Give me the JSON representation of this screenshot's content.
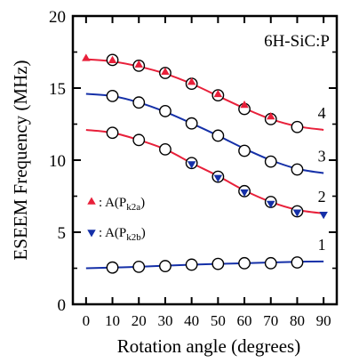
{
  "chart_data": {
    "type": "scatter",
    "annotation": "6H-SiC:P",
    "xlabel": "Rotation angle (degrees)",
    "ylabel": "ESEEM Frequency (MHz)",
    "xlim": [
      -5,
      95
    ],
    "ylim": [
      0,
      20
    ],
    "xticks": [
      0,
      10,
      20,
      30,
      40,
      50,
      60,
      70,
      80,
      90
    ],
    "yticks": [
      0,
      5,
      10,
      15,
      20
    ],
    "grid": false,
    "legend": {
      "placement": "middle-left",
      "entries": [
        {
          "marker": "triangle-up",
          "color": "#e8203a",
          "label": "A(P",
          "sub": "k2a",
          "suffix": ")"
        },
        {
          "marker": "triangle-down",
          "color": "#1530a8",
          "label": "A(P",
          "sub": "k2b",
          "suffix": ")"
        }
      ]
    },
    "curves": [
      {
        "label": "1",
        "color": "#1530a8",
        "x": [
          0,
          10,
          20,
          30,
          40,
          50,
          60,
          70,
          80,
          90
        ],
        "y": [
          2.5,
          2.55,
          2.6,
          2.68,
          2.75,
          2.8,
          2.85,
          2.9,
          2.95,
          2.97
        ]
      },
      {
        "label": "2",
        "color": "#e8203a",
        "x": [
          0,
          10,
          20,
          30,
          40,
          50,
          60,
          70,
          80,
          90
        ],
        "y": [
          12.1,
          11.9,
          11.4,
          10.75,
          9.8,
          8.9,
          7.9,
          7.1,
          6.55,
          6.3
        ]
      },
      {
        "label": "3",
        "color": "#1530a8",
        "x": [
          0,
          10,
          20,
          30,
          40,
          50,
          60,
          70,
          80,
          90
        ],
        "y": [
          14.6,
          14.45,
          14.0,
          13.35,
          12.55,
          11.7,
          10.8,
          10.0,
          9.4,
          9.1
        ]
      },
      {
        "label": "4",
        "color": "#e8203a",
        "x": [
          0,
          10,
          20,
          30,
          40,
          50,
          60,
          70,
          80,
          90
        ],
        "y": [
          17.0,
          16.85,
          16.5,
          16.0,
          15.3,
          14.45,
          13.6,
          12.85,
          12.35,
          12.1
        ]
      }
    ],
    "series": [
      {
        "marker": "circle-open",
        "points": [
          {
            "x": 10,
            "y": 2.55
          },
          {
            "x": 20,
            "y": 2.6
          },
          {
            "x": 30,
            "y": 2.65
          },
          {
            "x": 40,
            "y": 2.75
          },
          {
            "x": 50,
            "y": 2.8
          },
          {
            "x": 60,
            "y": 2.85
          },
          {
            "x": 70,
            "y": 2.85
          },
          {
            "x": 80,
            "y": 2.9
          },
          {
            "x": 10,
            "y": 11.9
          },
          {
            "x": 20,
            "y": 11.4
          },
          {
            "x": 30,
            "y": 10.75
          },
          {
            "x": 40,
            "y": 9.8
          },
          {
            "x": 50,
            "y": 8.85
          },
          {
            "x": 60,
            "y": 7.85
          },
          {
            "x": 70,
            "y": 7.1
          },
          {
            "x": 80,
            "y": 6.45
          },
          {
            "x": 10,
            "y": 14.45
          },
          {
            "x": 20,
            "y": 14.0
          },
          {
            "x": 30,
            "y": 13.4
          },
          {
            "x": 40,
            "y": 12.55
          },
          {
            "x": 50,
            "y": 11.7
          },
          {
            "x": 60,
            "y": 10.65
          },
          {
            "x": 70,
            "y": 9.9
          },
          {
            "x": 80,
            "y": 9.35
          },
          {
            "x": 10,
            "y": 16.95
          },
          {
            "x": 20,
            "y": 16.55
          },
          {
            "x": 30,
            "y": 16.05
          },
          {
            "x": 40,
            "y": 15.3
          },
          {
            "x": 50,
            "y": 14.5
          },
          {
            "x": 60,
            "y": 13.55
          },
          {
            "x": 70,
            "y": 12.85
          },
          {
            "x": 80,
            "y": 12.3
          }
        ]
      },
      {
        "marker": "triangle-up",
        "color": "#e8203a",
        "points": [
          {
            "x": 0,
            "y": 17.05
          },
          {
            "x": 10,
            "y": 16.9
          },
          {
            "x": 20,
            "y": 16.6
          },
          {
            "x": 30,
            "y": 16.1
          },
          {
            "x": 40,
            "y": 15.4
          },
          {
            "x": 50,
            "y": 14.55
          },
          {
            "x": 60,
            "y": 13.8
          },
          {
            "x": 70,
            "y": 13.0
          }
        ]
      },
      {
        "marker": "triangle-down",
        "color": "#1530a8",
        "points": [
          {
            "x": 40,
            "y": 9.75
          },
          {
            "x": 50,
            "y": 8.8
          },
          {
            "x": 60,
            "y": 7.8
          },
          {
            "x": 70,
            "y": 7.0
          },
          {
            "x": 80,
            "y": 6.4
          },
          {
            "x": 90,
            "y": 6.25
          }
        ]
      }
    ]
  }
}
